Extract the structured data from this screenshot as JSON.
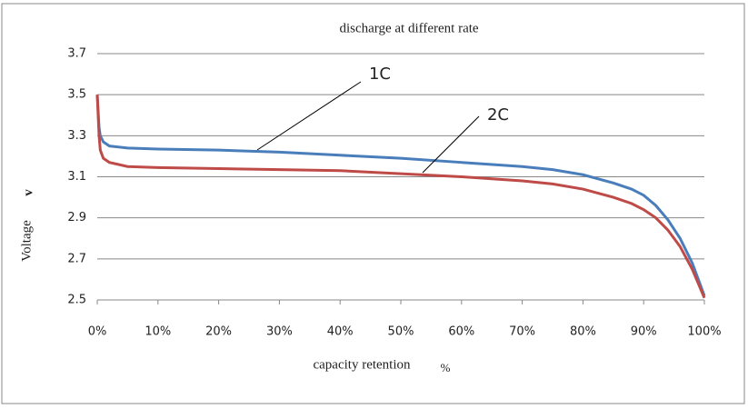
{
  "chart_data": {
    "type": "line",
    "title": "discharge at different rate",
    "y_label": "Voltage",
    "y_unit": "v",
    "x_label": "capacity retention",
    "x_unit": "%",
    "x": [
      0,
      0.3,
      0.5,
      1,
      2,
      5,
      10,
      20,
      30,
      40,
      50,
      60,
      70,
      75,
      80,
      85,
      88,
      90,
      92,
      94,
      96,
      98,
      99,
      100
    ],
    "series": [
      {
        "name": "1C",
        "color": "#4a7ebb",
        "values": [
          3.5,
          3.34,
          3.3,
          3.27,
          3.25,
          3.24,
          3.235,
          3.23,
          3.22,
          3.205,
          3.19,
          3.17,
          3.15,
          3.135,
          3.11,
          3.07,
          3.04,
          3.01,
          2.96,
          2.89,
          2.8,
          2.68,
          2.6,
          2.52
        ]
      },
      {
        "name": "2C",
        "color": "#be4b48",
        "values": [
          3.5,
          3.3,
          3.23,
          3.19,
          3.17,
          3.15,
          3.145,
          3.14,
          3.135,
          3.13,
          3.115,
          3.1,
          3.08,
          3.065,
          3.04,
          3.0,
          2.97,
          2.94,
          2.9,
          2.84,
          2.76,
          2.65,
          2.58,
          2.51
        ]
      }
    ],
    "xlim": [
      0,
      100
    ],
    "xticks": [
      {
        "value": 0,
        "label": "0%"
      },
      {
        "value": 10,
        "label": "10%"
      },
      {
        "value": 20,
        "label": "20%"
      },
      {
        "value": 30,
        "label": "30%"
      },
      {
        "value": 40,
        "label": "40%"
      },
      {
        "value": 50,
        "label": "50%"
      },
      {
        "value": 60,
        "label": "60%"
      },
      {
        "value": 70,
        "label": "70%"
      },
      {
        "value": 80,
        "label": "80%"
      },
      {
        "value": 90,
        "label": "90%"
      },
      {
        "value": 100,
        "label": "100%"
      }
    ],
    "ylim": [
      2.5,
      3.7
    ],
    "yticks": [
      2.5,
      2.7,
      2.9,
      3.1,
      3.3,
      3.5,
      3.7
    ],
    "grid": true
  }
}
